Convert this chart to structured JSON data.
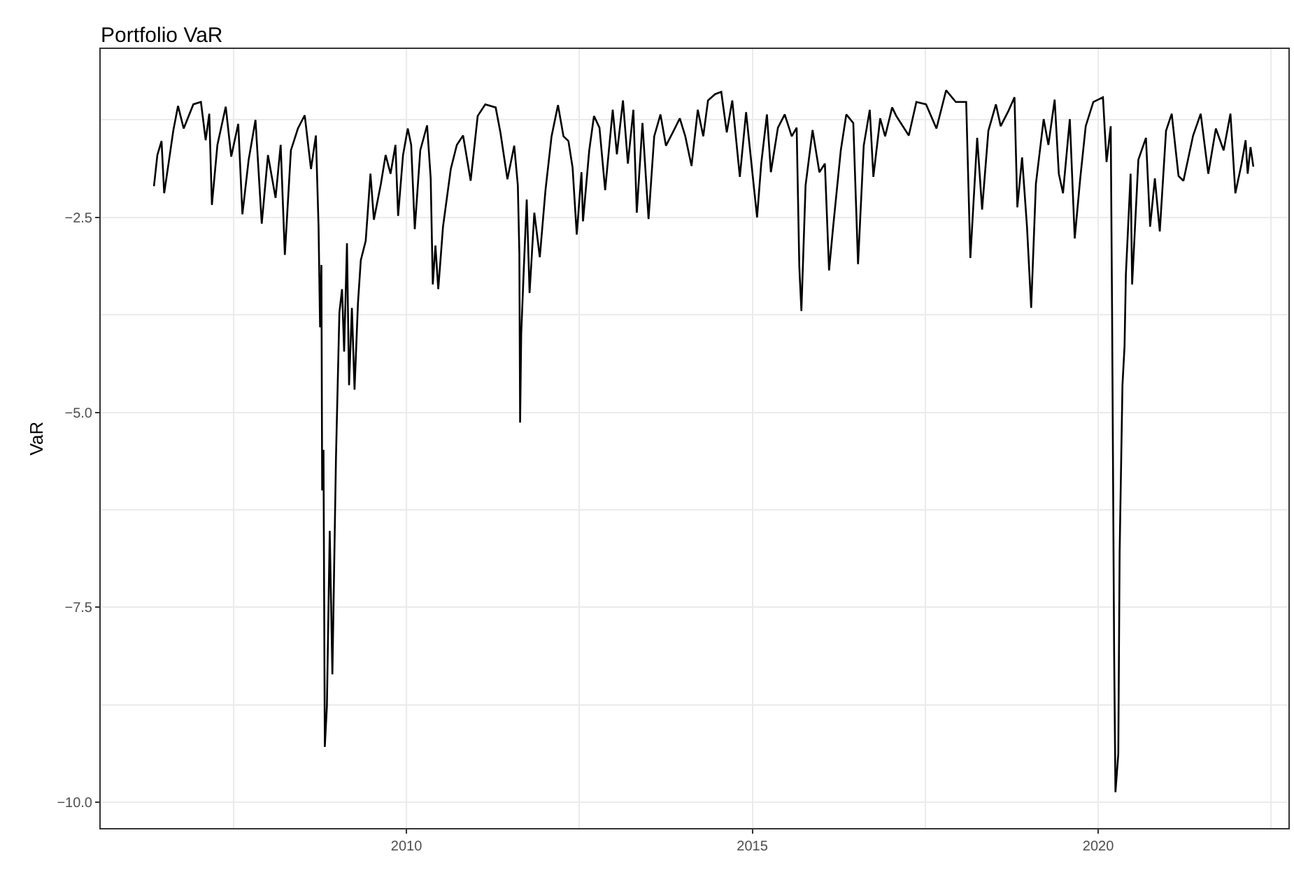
{
  "chart_data": {
    "type": "line",
    "title": "Portfolio VaR",
    "ylabel": "VaR",
    "xlim": [
      "2005-08-01",
      "2022-10-01"
    ],
    "ylim": [
      -10.33,
      -0.34
    ],
    "xticks": [
      {
        "value": "2010-01-01",
        "label": "2010"
      },
      {
        "value": "2015-01-01",
        "label": "2015"
      },
      {
        "value": "2020-01-01",
        "label": "2020"
      }
    ],
    "yticks": [
      {
        "value": -2.5,
        "label": "−2.5"
      },
      {
        "value": -5.0,
        "label": "−5.0"
      },
      {
        "value": -7.5,
        "label": "−7.5"
      },
      {
        "value": -10.0,
        "label": "−10.0"
      }
    ],
    "grid": true,
    "marker": "none",
    "line_style": "solid",
    "series": [
      {
        "color": "#000000",
        "x": [
          "2006-05-09",
          "2006-05-27",
          "2006-06-18",
          "2006-07-02",
          "2006-07-28",
          "2006-08-19",
          "2006-09-13",
          "2006-10-13",
          "2006-12-03",
          "2007-01-12",
          "2007-02-06",
          "2007-02-25",
          "2007-03-11",
          "2007-04-09",
          "2007-05-23",
          "2007-06-21",
          "2007-07-28",
          "2007-08-19",
          "2007-09-21",
          "2007-10-27",
          "2007-11-29",
          "2008-01-01",
          "2008-02-10",
          "2008-03-08",
          "2008-03-30",
          "2008-05-01",
          "2008-06-07",
          "2008-07-13",
          "2008-08-15",
          "2008-09-10",
          "2008-09-24",
          "2008-10-02",
          "2008-10-09",
          "2008-10-13",
          "2008-10-20",
          "2008-10-27",
          "2008-11-07",
          "2008-11-22",
          "2008-12-06",
          "2008-12-25",
          "2009-01-12",
          "2009-01-26",
          "2009-02-06",
          "2009-02-21",
          "2009-03-04",
          "2009-03-19",
          "2009-04-02",
          "2009-04-20",
          "2009-05-05",
          "2009-05-31",
          "2009-06-25",
          "2009-07-13",
          "2009-08-19",
          "2009-09-13",
          "2009-10-09",
          "2009-11-04",
          "2009-11-18",
          "2009-12-14",
          "2010-01-08",
          "2010-01-26",
          "2010-02-14",
          "2010-03-15",
          "2010-04-20",
          "2010-05-09",
          "2010-05-20",
          "2010-06-03",
          "2010-06-18",
          "2010-07-13",
          "2010-08-23",
          "2010-09-24",
          "2010-10-27",
          "2010-12-06",
          "2011-01-12",
          "2011-02-21",
          "2011-04-17",
          "2011-05-12",
          "2011-06-18",
          "2011-07-24",
          "2011-08-12",
          "2011-08-20",
          "2011-08-24",
          "2011-08-30",
          "2011-09-13",
          "2011-09-28",
          "2011-10-13",
          "2011-11-07",
          "2011-12-06",
          "2012-01-05",
          "2012-02-06",
          "2012-03-11",
          "2012-04-09",
          "2012-05-05",
          "2012-05-27",
          "2012-06-18",
          "2012-07-13",
          "2012-07-21",
          "2012-08-23",
          "2012-09-17",
          "2012-10-16",
          "2012-11-15",
          "2012-12-25",
          "2013-01-16",
          "2013-02-17",
          "2013-03-15",
          "2013-04-13",
          "2013-05-01",
          "2013-05-31",
          "2013-07-02",
          "2013-08-01",
          "2013-09-03",
          "2013-10-02",
          "2013-11-07",
          "2013-12-14",
          "2014-01-12",
          "2014-02-14",
          "2014-03-19",
          "2014-04-17",
          "2014-05-12",
          "2014-06-18",
          "2014-07-21",
          "2014-08-19",
          "2014-09-17",
          "2014-10-27",
          "2014-11-29",
          "2015-01-01",
          "2015-01-26",
          "2015-02-17",
          "2015-03-19",
          "2015-04-09",
          "2015-05-16",
          "2015-06-21",
          "2015-07-28",
          "2015-08-23",
          "2015-09-06",
          "2015-09-17",
          "2015-10-09",
          "2015-11-15",
          "2015-12-21",
          "2016-01-19",
          "2016-02-10",
          "2016-03-03",
          "2016-04-12",
          "2016-05-11",
          "2016-06-17",
          "2016-07-12",
          "2016-08-11",
          "2016-09-12",
          "2016-10-01",
          "2016-11-06",
          "2016-12-02",
          "2017-01-08",
          "2017-01-30",
          "2017-04-06",
          "2017-05-16",
          "2017-07-06",
          "2017-08-30",
          "2017-10-20",
          "2017-12-10",
          "2018-02-03",
          "2018-02-25",
          "2018-04-02",
          "2018-04-28",
          "2018-05-31",
          "2018-07-10",
          "2018-08-04",
          "2018-09-13",
          "2018-10-16",
          "2018-10-31",
          "2018-11-25",
          "2018-12-21",
          "2019-01-12",
          "2019-02-06",
          "2019-03-19",
          "2019-04-13",
          "2019-05-16",
          "2019-06-07",
          "2019-06-29",
          "2019-08-04",
          "2019-08-30",
          "2019-09-28",
          "2019-10-27",
          "2019-12-06",
          "2020-01-26",
          "2020-02-14",
          "2020-03-07",
          "2020-03-14",
          "2020-03-25",
          "2020-04-01",
          "2020-04-16",
          "2020-04-23",
          "2020-05-08",
          "2020-05-19",
          "2020-05-26",
          "2020-06-20",
          "2020-06-28",
          "2020-07-31",
          "2020-09-09",
          "2020-10-01",
          "2020-10-26",
          "2020-11-21",
          "2020-12-24",
          "2021-01-23",
          "2021-02-28",
          "2021-03-26",
          "2021-05-16",
          "2021-06-25",
          "2021-08-04",
          "2021-09-13",
          "2021-10-24",
          "2021-11-29",
          "2021-12-25",
          "2022-01-26",
          "2022-02-17",
          "2022-02-28",
          "2022-03-15",
          "2022-03-30"
        ],
        "values": [
          -2.1,
          -1.7,
          -1.52,
          -2.19,
          -1.76,
          -1.39,
          -1.07,
          -1.36,
          -1.05,
          -1.02,
          -1.51,
          -1.17,
          -2.34,
          -1.57,
          -1.08,
          -1.72,
          -1.3,
          -2.46,
          -1.76,
          -1.25,
          -2.58,
          -1.7,
          -2.25,
          -1.57,
          -2.98,
          -1.64,
          -1.36,
          -1.19,
          -1.88,
          -1.45,
          -2.62,
          -3.91,
          -3.11,
          -6.0,
          -5.48,
          -9.29,
          -8.77,
          -6.52,
          -8.36,
          -5.57,
          -3.72,
          -3.42,
          -4.22,
          -2.83,
          -4.65,
          -3.66,
          -4.71,
          -3.6,
          -3.05,
          -2.8,
          -1.94,
          -2.53,
          -2.07,
          -1.7,
          -1.94,
          -1.57,
          -2.48,
          -1.7,
          -1.36,
          -1.57,
          -2.65,
          -1.64,
          -1.32,
          -2.0,
          -3.36,
          -2.86,
          -3.42,
          -2.62,
          -1.88,
          -1.57,
          -1.45,
          -2.03,
          -1.2,
          -1.05,
          -1.09,
          -1.41,
          -2.01,
          -1.58,
          -2.09,
          -2.96,
          -5.13,
          -3.99,
          -3.13,
          -2.27,
          -3.47,
          -2.44,
          -3.01,
          -2.15,
          -1.46,
          -1.06,
          -1.46,
          -1.52,
          -1.86,
          -2.72,
          -1.92,
          -2.55,
          -1.64,
          -1.2,
          -1.35,
          -2.15,
          -1.12,
          -1.69,
          -1.0,
          -1.81,
          -1.12,
          -2.44,
          -1.29,
          -2.52,
          -1.46,
          -1.18,
          -1.58,
          -1.41,
          -1.23,
          -1.46,
          -1.84,
          -1.12,
          -1.46,
          -1.0,
          -0.92,
          -0.89,
          -1.41,
          -1.0,
          -1.98,
          -1.15,
          -1.92,
          -2.5,
          -1.81,
          -1.18,
          -1.92,
          -1.35,
          -1.18,
          -1.46,
          -1.35,
          -3.13,
          -3.7,
          -2.09,
          -1.38,
          -1.92,
          -1.81,
          -3.18,
          -2.61,
          -1.64,
          -1.18,
          -1.29,
          -3.1,
          -1.58,
          -1.12,
          -1.98,
          -1.23,
          -1.46,
          -1.09,
          -1.2,
          -1.45,
          -1.02,
          -1.05,
          -1.36,
          -0.87,
          -1.02,
          -1.02,
          -3.02,
          -1.48,
          -2.4,
          -1.39,
          -1.05,
          -1.33,
          -1.14,
          -0.96,
          -2.37,
          -1.73,
          -2.62,
          -3.66,
          -2.07,
          -1.24,
          -1.57,
          -0.99,
          -1.94,
          -2.19,
          -1.24,
          -2.77,
          -2.0,
          -1.33,
          -1.02,
          -0.96,
          -1.79,
          -1.33,
          -3.66,
          -8.09,
          -9.87,
          -9.38,
          -6.8,
          -4.65,
          -4.15,
          -3.23,
          -1.94,
          -3.36,
          -1.76,
          -1.48,
          -2.62,
          -2.0,
          -2.68,
          -1.39,
          -1.17,
          -1.97,
          -2.03,
          -1.45,
          -1.17,
          -1.94,
          -1.36,
          -1.64,
          -1.17,
          -2.19,
          -1.82,
          -1.51,
          -1.94,
          -1.6,
          -1.85
        ]
      }
    ]
  }
}
